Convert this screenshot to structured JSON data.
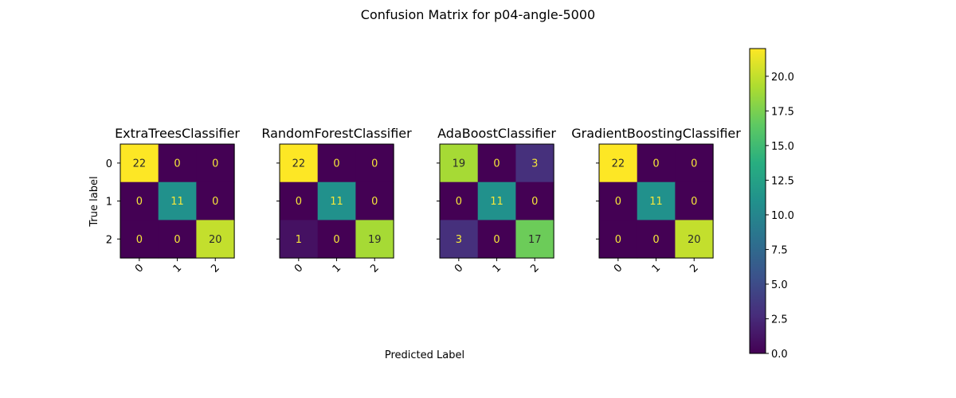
{
  "figure": {
    "title": "Confusion Matrix for p04-angle-5000",
    "xlabel": "Predicted Label",
    "ylabel": "True label"
  },
  "chart_data": [
    {
      "type": "heatmap",
      "title": "ExtraTreesClassifier",
      "x_categories": [
        "0",
        "1",
        "2"
      ],
      "y_categories": [
        "0",
        "1",
        "2"
      ],
      "matrix": [
        [
          22,
          0,
          0
        ],
        [
          0,
          11,
          0
        ],
        [
          0,
          0,
          20
        ]
      ]
    },
    {
      "type": "heatmap",
      "title": "RandomForestClassifier",
      "x_categories": [
        "0",
        "1",
        "2"
      ],
      "y_categories": [
        "0",
        "1",
        "2"
      ],
      "matrix": [
        [
          22,
          0,
          0
        ],
        [
          0,
          11,
          0
        ],
        [
          1,
          0,
          19
        ]
      ]
    },
    {
      "type": "heatmap",
      "title": "AdaBoostClassifier",
      "x_categories": [
        "0",
        "1",
        "2"
      ],
      "y_categories": [
        "0",
        "1",
        "2"
      ],
      "matrix": [
        [
          19,
          0,
          3
        ],
        [
          0,
          11,
          0
        ],
        [
          3,
          0,
          17
        ]
      ]
    },
    {
      "type": "heatmap",
      "title": "GradientBoostingClassifier",
      "x_categories": [
        "0",
        "1",
        "2"
      ],
      "y_categories": [
        "0",
        "1",
        "2"
      ],
      "matrix": [
        [
          22,
          0,
          0
        ],
        [
          0,
          11,
          0
        ],
        [
          0,
          0,
          20
        ]
      ]
    }
  ],
  "colorbar": {
    "colormap": "viridis",
    "min": 0,
    "max": 22,
    "ticks": [
      "0.0",
      "2.5",
      "5.0",
      "7.5",
      "10.0",
      "12.5",
      "15.0",
      "17.5",
      "20.0"
    ]
  }
}
